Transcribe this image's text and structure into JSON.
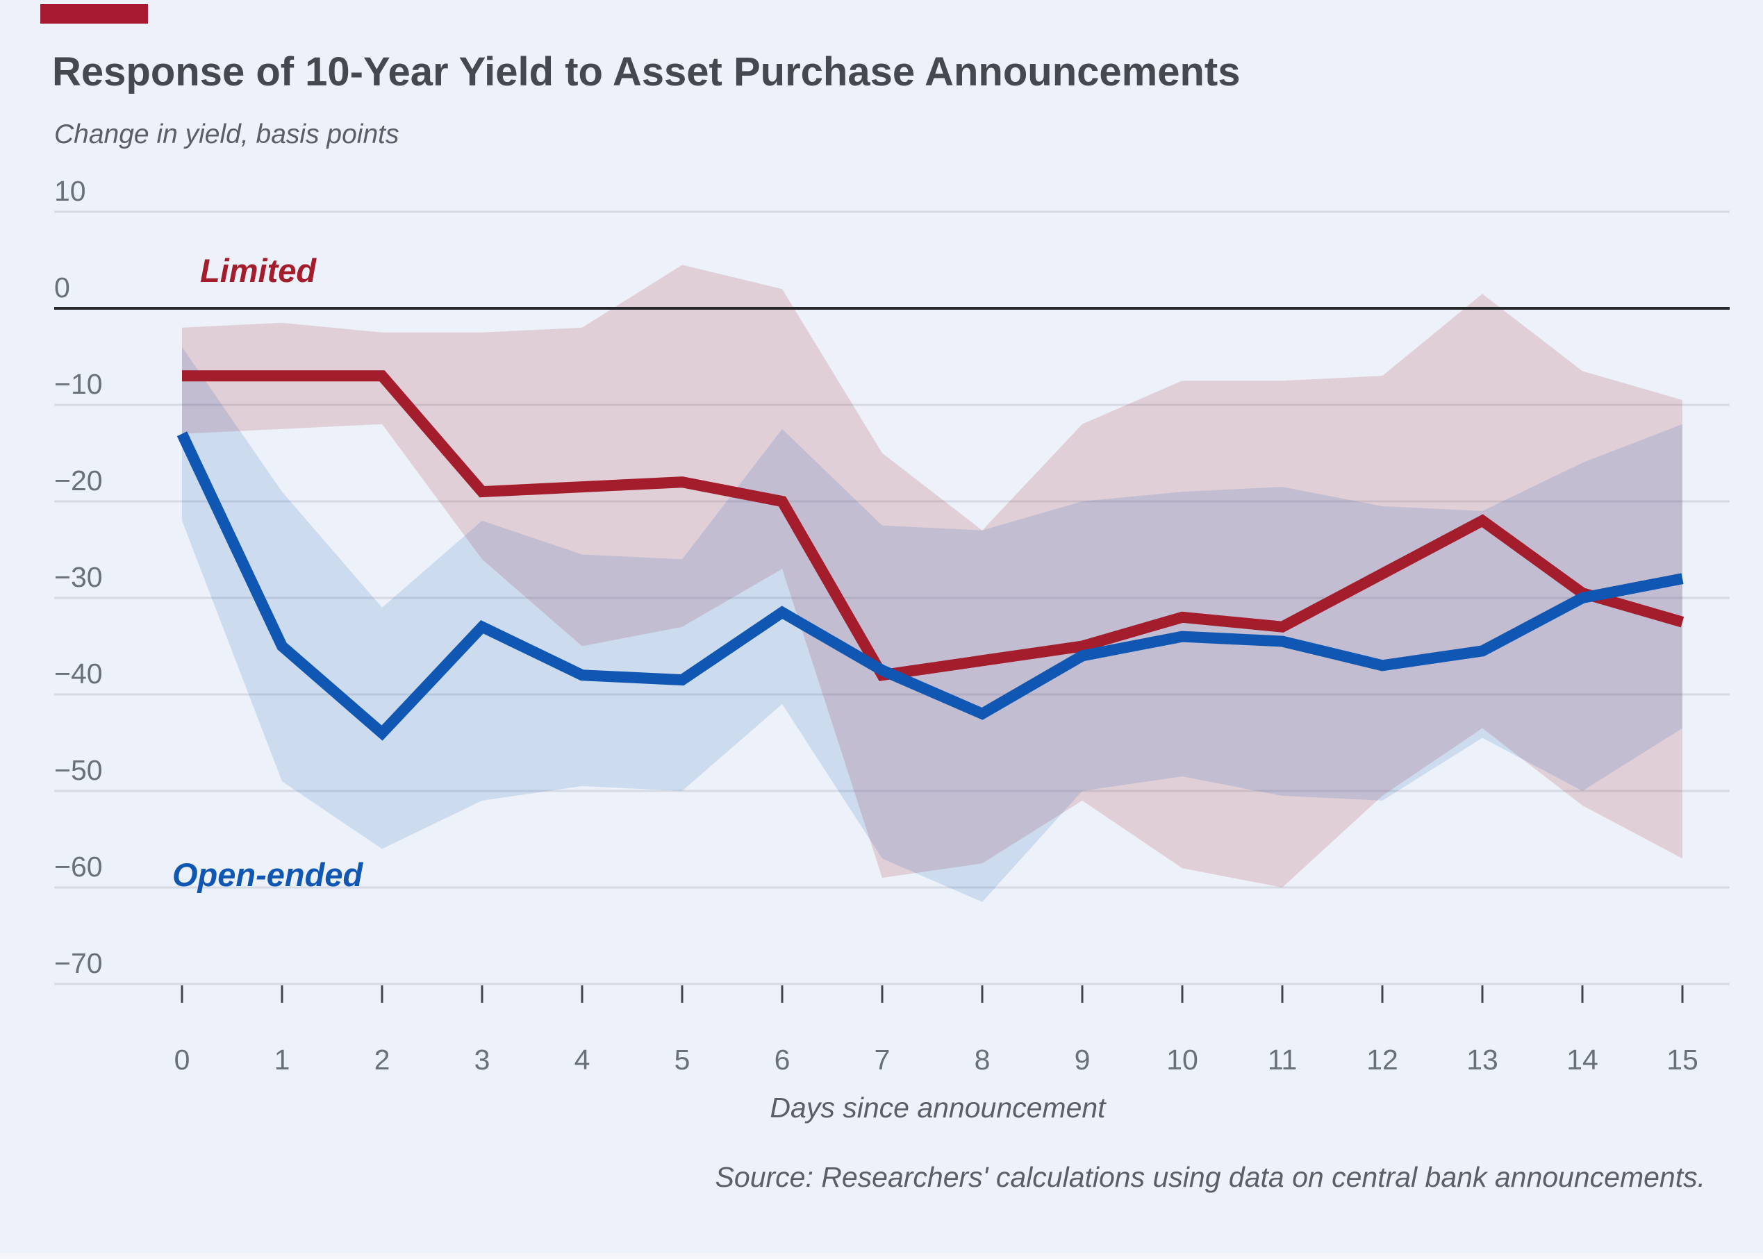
{
  "header": {
    "title": "Response of 10-Year Yield to Asset Purchase Announcements",
    "subtitle": "Change in yield, basis points"
  },
  "footer": {
    "source": "Source: Researchers' calculations using data on central bank announcements."
  },
  "colors": {
    "background": "#edf1f9",
    "accent_red": "#A6192E",
    "title_text": "#45494f",
    "muted_text": "#5a5f66",
    "tick_text": "#6a707a"
  },
  "chart_data": {
    "type": "line",
    "title": "Response of 10-Year Yield to Asset Purchase Announcements",
    "ylabel": "Change in yield, basis points",
    "xlabel": "Days since announcement",
    "grid": true,
    "legend_position": "inline-labels",
    "x": [
      0,
      1,
      2,
      3,
      4,
      5,
      6,
      7,
      8,
      9,
      10,
      11,
      12,
      13,
      14,
      15
    ],
    "xtick_labels": [
      "0",
      "1",
      "2",
      "3",
      "4",
      "5",
      "6",
      "7",
      "8",
      "9",
      "10",
      "11",
      "12",
      "13",
      "14",
      "15"
    ],
    "ylim": [
      -70,
      10
    ],
    "yticks": [
      10,
      0,
      -10,
      -20,
      -30,
      -40,
      -50,
      -60,
      -70
    ],
    "ytick_labels": [
      "10",
      "0",
      "−10",
      "−20",
      "−30",
      "−40",
      "−50",
      "−60",
      "−70"
    ],
    "grid_color": "#d5dae4",
    "zero_line_color": "#26282c",
    "tick_color": "#6a707a",
    "series": [
      {
        "name": "Limited",
        "color": "#A31D2C",
        "band_color": "rgba(163,29,44,0.16)",
        "values": [
          -7,
          -7,
          -7,
          -19,
          -18.5,
          -18,
          -20,
          -38,
          -36.5,
          -35,
          -32,
          -33,
          -27.5,
          -22,
          -29.5,
          -32.5
        ],
        "band_upper": [
          -2,
          -1.5,
          -2.5,
          -2.5,
          -2,
          4.5,
          2,
          -15,
          -23,
          -12,
          -7.5,
          -7.5,
          -7,
          1.5,
          -6.5,
          -9.5
        ],
        "band_lower": [
          -13,
          -12.5,
          -12,
          -26,
          -35,
          -33,
          -27,
          -59,
          -57.5,
          -51,
          -58,
          -60,
          -50.5,
          -43.5,
          -51.5,
          -57
        ]
      },
      {
        "name": "Open-ended",
        "color": "#0F57B2",
        "band_color": "rgba(15,87,178,0.14)",
        "values": [
          -13,
          -35,
          -44,
          -33,
          -38,
          -38.5,
          -31.5,
          -37.5,
          -42,
          -36,
          -34,
          -34.5,
          -37,
          -35.5,
          -30,
          -28
        ],
        "band_upper": [
          -4,
          -19,
          -31,
          -22,
          -25.5,
          -26,
          -12.5,
          -22.5,
          -23,
          -20,
          -19,
          -18.5,
          -20.5,
          -21,
          -16,
          -12
        ],
        "band_lower": [
          -22,
          -49,
          -56,
          -51,
          -49.5,
          -50,
          -41,
          -57,
          -61.5,
          -50,
          -48.5,
          -50.5,
          -51,
          -44.5,
          -50,
          -43.5
        ]
      }
    ]
  }
}
